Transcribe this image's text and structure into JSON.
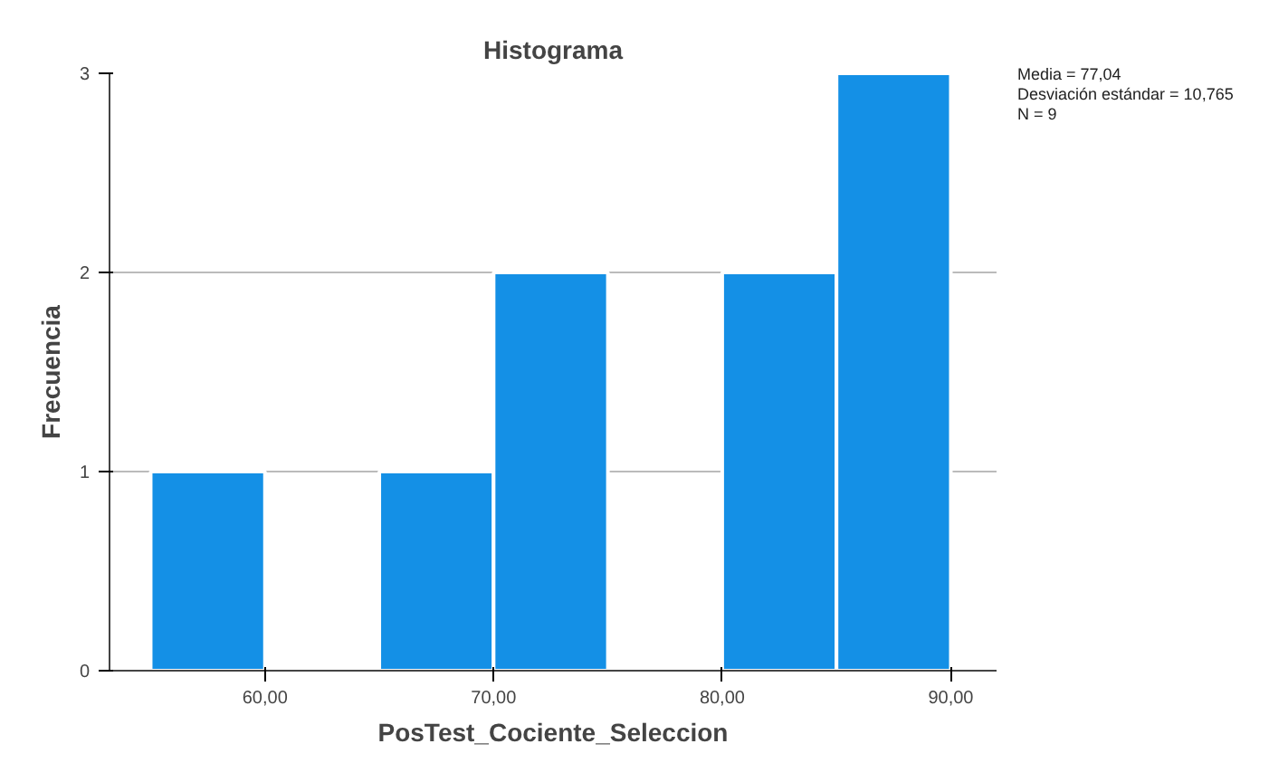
{
  "chart_data": {
    "type": "histogram",
    "title": "Histograma",
    "xlabel": "PosTest_Cociente_Seleccion",
    "ylabel": "Frecuencia",
    "bins": [
      55,
      60,
      65,
      70,
      75,
      80,
      85,
      90
    ],
    "values": [
      1,
      0,
      1,
      2,
      0,
      2,
      3
    ],
    "color": "#1490e6",
    "xlim": [
      53.2,
      92
    ],
    "xticks": [
      {
        "value": 60,
        "label": "60,00"
      },
      {
        "value": 70,
        "label": "70,00"
      },
      {
        "value": 80,
        "label": "80,00"
      },
      {
        "value": 90,
        "label": "90,00"
      }
    ],
    "ylim": [
      0,
      3
    ],
    "yticks": [
      0,
      1,
      2,
      3
    ],
    "grid": "y",
    "annotations": [
      "Media = 77,04",
      "Desviación estándar = 10,765",
      "N = 9"
    ]
  }
}
